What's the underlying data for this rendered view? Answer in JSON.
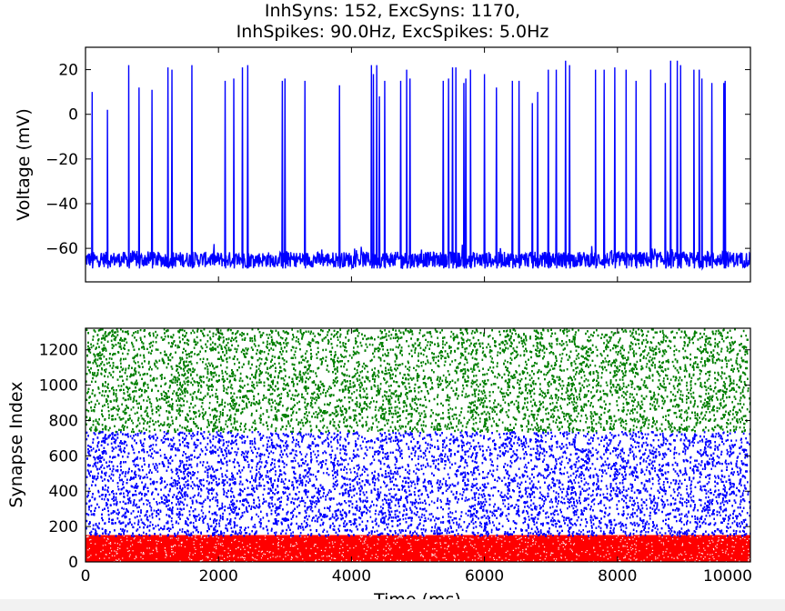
{
  "title_lines": [
    "InhSyns: 152, ExcSyns: 1170,",
    "InhSpikes: 90.0Hz, ExcSpikes: 5.0Hz"
  ],
  "chart_data": [
    {
      "type": "line",
      "title": "InhSyns: 152, ExcSyns: 1170, InhSpikes: 90.0Hz, ExcSpikes: 5.0Hz",
      "xlabel": "",
      "ylabel": "Voltage (mV)",
      "xlim": [
        0,
        10000
      ],
      "ylim": [
        -75,
        30
      ],
      "yticks": [
        20,
        0,
        -20,
        -40,
        -60
      ],
      "ytick_labels": [
        "20",
        "0",
        "−20",
        "−40",
        "−60"
      ],
      "xticks": [
        0,
        2000,
        4000,
        6000,
        8000,
        10000
      ],
      "show_xtick_labels": false,
      "grid": false,
      "line_color": "#0000ff",
      "baseline_mV": -65,
      "noise_mV": 3.5,
      "spike_times_ms": [
        100,
        330,
        650,
        805,
        1000,
        1240,
        1300,
        1600,
        2100,
        2230,
        2360,
        2440,
        2960,
        3000,
        3300,
        3820,
        4300,
        4330,
        4380,
        4420,
        4500,
        4740,
        4830,
        4880,
        5380,
        5460,
        5520,
        5570,
        5690,
        5720,
        5790,
        6000,
        6180,
        6420,
        6520,
        6720,
        6800,
        6960,
        7080,
        7220,
        7280,
        7670,
        7800,
        7960,
        8130,
        8280,
        8500,
        8720,
        8800,
        8900,
        8950,
        9150,
        9230,
        9270,
        9420,
        9600,
        9620
      ],
      "spike_peaks_mV": [
        10,
        2,
        22,
        12,
        11,
        21,
        20,
        22,
        15,
        16,
        21,
        22,
        15,
        16,
        15,
        13,
        22,
        18,
        22,
        8,
        15,
        15,
        20,
        16,
        15,
        16,
        21,
        21,
        14,
        16,
        20,
        18,
        12,
        15,
        15,
        5,
        10,
        20,
        20,
        24,
        22,
        20,
        20,
        21,
        20,
        15,
        20,
        14,
        24,
        24,
        22,
        20,
        20,
        16,
        14,
        14,
        15
      ]
    },
    {
      "type": "scatter",
      "xlabel": "Time (ms)",
      "ylabel": "Synapse Index",
      "xlim": [
        0,
        10000
      ],
      "ylim": [
        0,
        1322
      ],
      "xticks": [
        0,
        2000,
        4000,
        6000,
        8000,
        10000
      ],
      "xtick_labels": [
        "0",
        "2000",
        "4000",
        "6000",
        "8000",
        "10000"
      ],
      "yticks": [
        0,
        200,
        400,
        600,
        800,
        1000,
        1200
      ],
      "ytick_labels": [
        "0",
        "200",
        "400",
        "600",
        "800",
        "1000",
        "1200"
      ],
      "grid": false,
      "series": [
        {
          "index_range": [
            0,
            152
          ],
          "rate_hz": 90.0,
          "color": "#ff0000"
        },
        {
          "index_range": [
            152,
            741
          ],
          "rate_hz": 5.0,
          "color": "#0000ff"
        },
        {
          "index_range": [
            741,
            1322
          ],
          "rate_hz": 5.0,
          "color": "#007f00"
        }
      ]
    }
  ]
}
